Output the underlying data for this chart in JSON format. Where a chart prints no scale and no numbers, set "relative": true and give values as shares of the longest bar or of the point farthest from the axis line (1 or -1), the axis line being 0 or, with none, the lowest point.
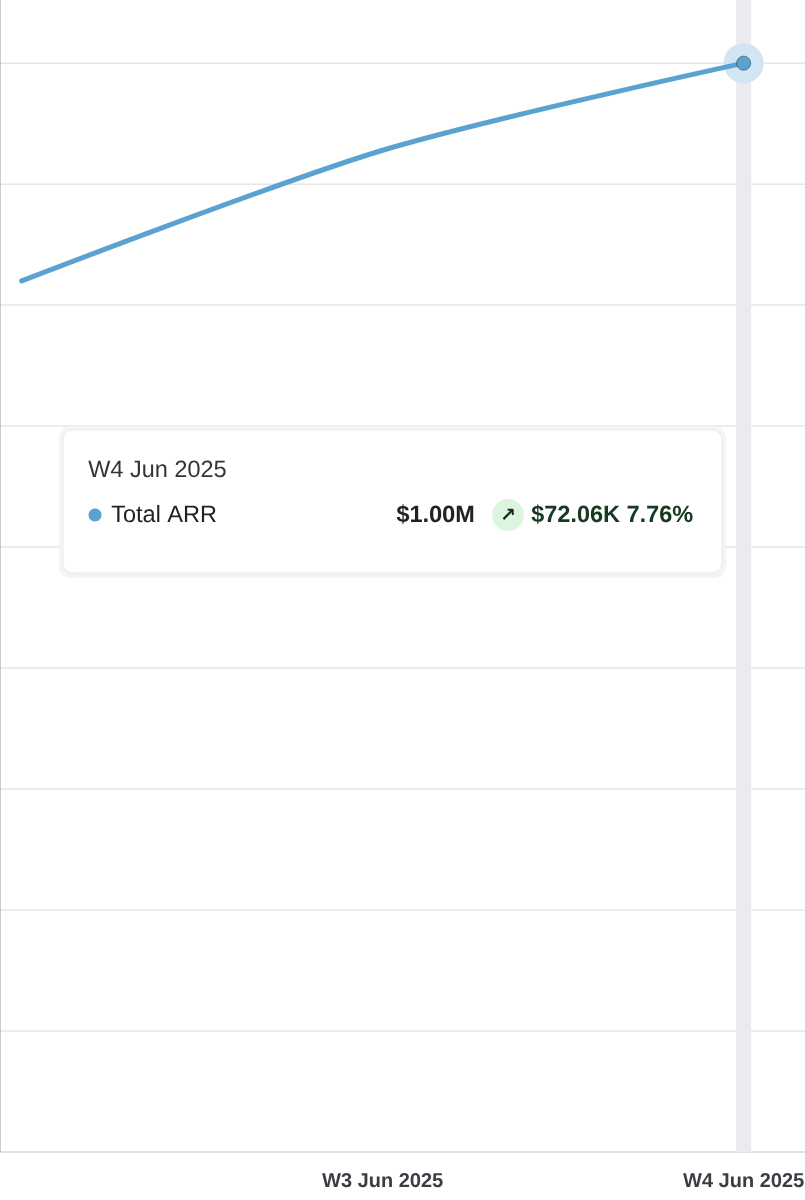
{
  "chart_data": {
    "type": "line",
    "relative": true,
    "categories": [
      null,
      "W3 Jun 2025",
      "W4 Jun 2025"
    ],
    "series": [
      {
        "name": "Total ARR",
        "color": "#5aa2d0",
        "values": [
          0.8,
          0.92,
          1
        ]
      },
      {
        "type": "scatter",
        "color": "#5aa2d0",
        "marker": "circle",
        "values": [
          null,
          null,
          1
        ]
      }
    ],
    "grid": "y",
    "ref_lines": [
      {
        "axis": "x",
        "value": "W4 Jun 2025",
        "color": "#ebebef"
      }
    ],
    "annotations": [
      "W4 Jun 2025",
      "$1.00M",
      "↗",
      "$72.06K 7.76%"
    ]
  }
}
